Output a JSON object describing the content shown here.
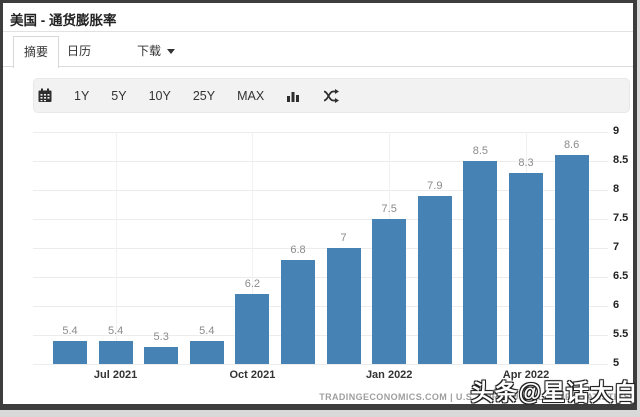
{
  "header": {
    "title": "美国 - 通货膨胀率"
  },
  "tabs": [
    {
      "label": "摘要",
      "active": true
    },
    {
      "label": "日历",
      "active": false
    },
    {
      "label": "下载",
      "active": false,
      "has_caret": true
    }
  ],
  "toolbar": {
    "icons": [
      "calendar-icon",
      "bar-chart-icon",
      "compare-shuffle-icon"
    ],
    "ranges": [
      "1Y",
      "5Y",
      "10Y",
      "25Y",
      "MAX"
    ]
  },
  "chart_data": {
    "type": "bar",
    "values": [
      5.4,
      5.4,
      5.3,
      5.4,
      6.2,
      6.8,
      7,
      7.5,
      7.9,
      8.5,
      8.3,
      8.6
    ],
    "value_labels": [
      "5.4",
      "5.4",
      "5.3",
      "5.4",
      "6.2",
      "6.8",
      "7",
      "7.5",
      "7.9",
      "8.5",
      "8.3",
      "8.6"
    ],
    "x_ticks": [
      {
        "bar_index": 1,
        "label": "Jul 2021"
      },
      {
        "bar_index": 4,
        "label": "Oct 2021"
      },
      {
        "bar_index": 7,
        "label": "Jan 2022"
      },
      {
        "bar_index": 10,
        "label": "Apr 2022"
      }
    ],
    "y_ticks": [
      "9",
      "8.5",
      "8",
      "7.5",
      "7",
      "6.5",
      "6",
      "5.5",
      "5"
    ],
    "ylim": [
      5,
      9
    ],
    "y_axis_side": "right",
    "grid": true,
    "bar_color": "#4682b4",
    "title": "",
    "xlabel": "",
    "ylabel": ""
  },
  "footer": {
    "source": "TRADINGECONOMICS.COM | U.S. BUREAU OF LABOR STATISTICS",
    "watermark": "头条@星话大白"
  }
}
